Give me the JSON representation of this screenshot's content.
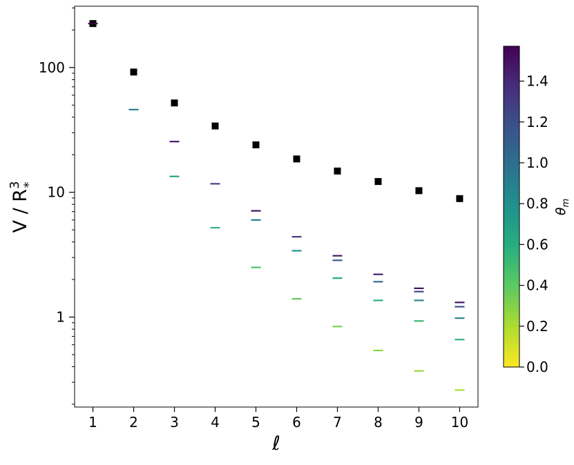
{
  "chart_data": {
    "type": "scatter",
    "xlabel": "ℓ",
    "ylabel": "V / R",
    "ylabel_sup": "3",
    "ylabel_sub": "*",
    "xticks": [
      1,
      2,
      3,
      4,
      5,
      6,
      7,
      8,
      9,
      10
    ],
    "xtick_labels": [
      "1",
      "2",
      "3",
      "4",
      "5",
      "6",
      "7",
      "8",
      "9",
      "10"
    ],
    "xlim": [
      0.55,
      10.45
    ],
    "ylim": [
      0.19,
      310
    ],
    "yscale": "log",
    "yticks": [
      1,
      10,
      100
    ],
    "ytick_labels": [
      "1",
      "10",
      "100"
    ],
    "grid": false,
    "colorbar": {
      "label": "θ",
      "label_sub": "m",
      "range": [
        0.0,
        1.5708
      ],
      "colormap": "viridis",
      "ticks": [
        0.0,
        0.2,
        0.4,
        0.6,
        0.8,
        1.0,
        1.2,
        1.4
      ],
      "tick_labels": [
        "0.0",
        "0.2",
        "0.4",
        "0.6",
        "0.8",
        "1.0",
        "1.2",
        "1.4"
      ]
    },
    "series": [
      {
        "marker": "square",
        "color": "#000000",
        "points": [
          {
            "x": 1,
            "y": 225
          },
          {
            "x": 2,
            "y": 92
          },
          {
            "x": 3,
            "y": 52
          },
          {
            "x": 4,
            "y": 34
          },
          {
            "x": 5,
            "y": 24
          },
          {
            "x": 6,
            "y": 18.5
          },
          {
            "x": 7,
            "y": 14.8
          },
          {
            "x": 8,
            "y": 12.2
          },
          {
            "x": 9,
            "y": 10.3
          },
          {
            "x": 10,
            "y": 8.9
          }
        ]
      },
      {
        "marker": "hline",
        "points": [
          {
            "x": 1,
            "y": 225,
            "theta": 1.571
          },
          {
            "x": 2,
            "y": 46,
            "theta": 0.9
          },
          {
            "x": 3,
            "y": 25.5,
            "theta": 1.47
          },
          {
            "x": 3,
            "y": 13.4,
            "theta": 0.67
          },
          {
            "x": 4,
            "y": 11.7,
            "theta": 1.28
          },
          {
            "x": 4,
            "y": 5.2,
            "theta": 0.55
          },
          {
            "x": 5,
            "y": 7.1,
            "theta": 1.5
          },
          {
            "x": 5,
            "y": 6.0,
            "theta": 0.9
          },
          {
            "x": 5,
            "y": 2.5,
            "theta": 0.46
          },
          {
            "x": 6,
            "y": 4.4,
            "theta": 1.32
          },
          {
            "x": 6,
            "y": 3.4,
            "theta": 0.79
          },
          {
            "x": 6,
            "y": 1.4,
            "theta": 0.38
          },
          {
            "x": 7,
            "y": 3.1,
            "theta": 1.47
          },
          {
            "x": 7,
            "y": 2.85,
            "theta": 1.15
          },
          {
            "x": 7,
            "y": 2.05,
            "theta": 0.66
          },
          {
            "x": 7,
            "y": 0.84,
            "theta": 0.32
          },
          {
            "x": 8,
            "y": 2.2,
            "theta": 1.44
          },
          {
            "x": 8,
            "y": 1.92,
            "theta": 1.02
          },
          {
            "x": 8,
            "y": 1.36,
            "theta": 0.61
          },
          {
            "x": 8,
            "y": 0.54,
            "theta": 0.27
          },
          {
            "x": 9,
            "y": 1.7,
            "theta": 1.52
          },
          {
            "x": 9,
            "y": 1.6,
            "theta": 1.25
          },
          {
            "x": 9,
            "y": 1.36,
            "theta": 0.87
          },
          {
            "x": 9,
            "y": 0.93,
            "theta": 0.52
          },
          {
            "x": 9,
            "y": 0.37,
            "theta": 0.24
          },
          {
            "x": 10,
            "y": 1.31,
            "theta": 1.5
          },
          {
            "x": 10,
            "y": 1.21,
            "theta": 1.2
          },
          {
            "x": 10,
            "y": 0.98,
            "theta": 0.87
          },
          {
            "x": 10,
            "y": 0.66,
            "theta": 0.55
          },
          {
            "x": 10,
            "y": 0.26,
            "theta": 0.2
          }
        ]
      }
    ]
  }
}
